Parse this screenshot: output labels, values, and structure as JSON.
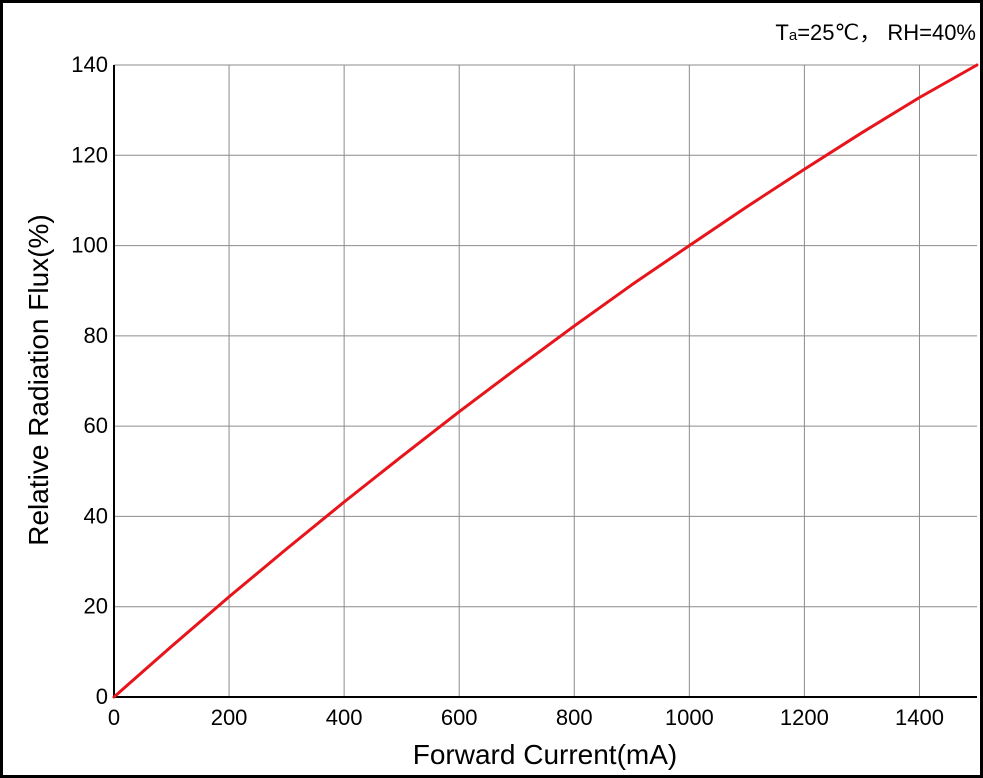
{
  "colors": {
    "curve": "#e8141b",
    "grid": "#8c8c8c",
    "axis": "#000000",
    "background": "#ffffff"
  },
  "conditions": {
    "prefix": "T",
    "subscript": "a",
    "text": "=25℃， RH=40%"
  },
  "chart_data": {
    "type": "line",
    "title": "",
    "xlabel": "Forward Current(mA)",
    "ylabel": "Relative Radiation Flux(%)",
    "xlim": [
      0,
      1500
    ],
    "ylim": [
      0,
      140
    ],
    "xticks": [
      0,
      200,
      400,
      600,
      800,
      1000,
      1200,
      1400
    ],
    "yticks": [
      0,
      20,
      40,
      60,
      80,
      100,
      120,
      140
    ],
    "grid": true,
    "legend": "none",
    "series": [
      {
        "values_x": [
          0,
          100,
          200,
          300,
          400,
          500,
          600,
          700,
          800,
          900,
          1000,
          1100,
          1200,
          1300,
          1400,
          1500
        ],
        "values_y": [
          0,
          11.2,
          22.2,
          32.8,
          43.2,
          53.3,
          63.2,
          72.8,
          82.2,
          91.3,
          100.0,
          108.6,
          116.9,
          125.0,
          132.8,
          140.2
        ]
      }
    ]
  }
}
